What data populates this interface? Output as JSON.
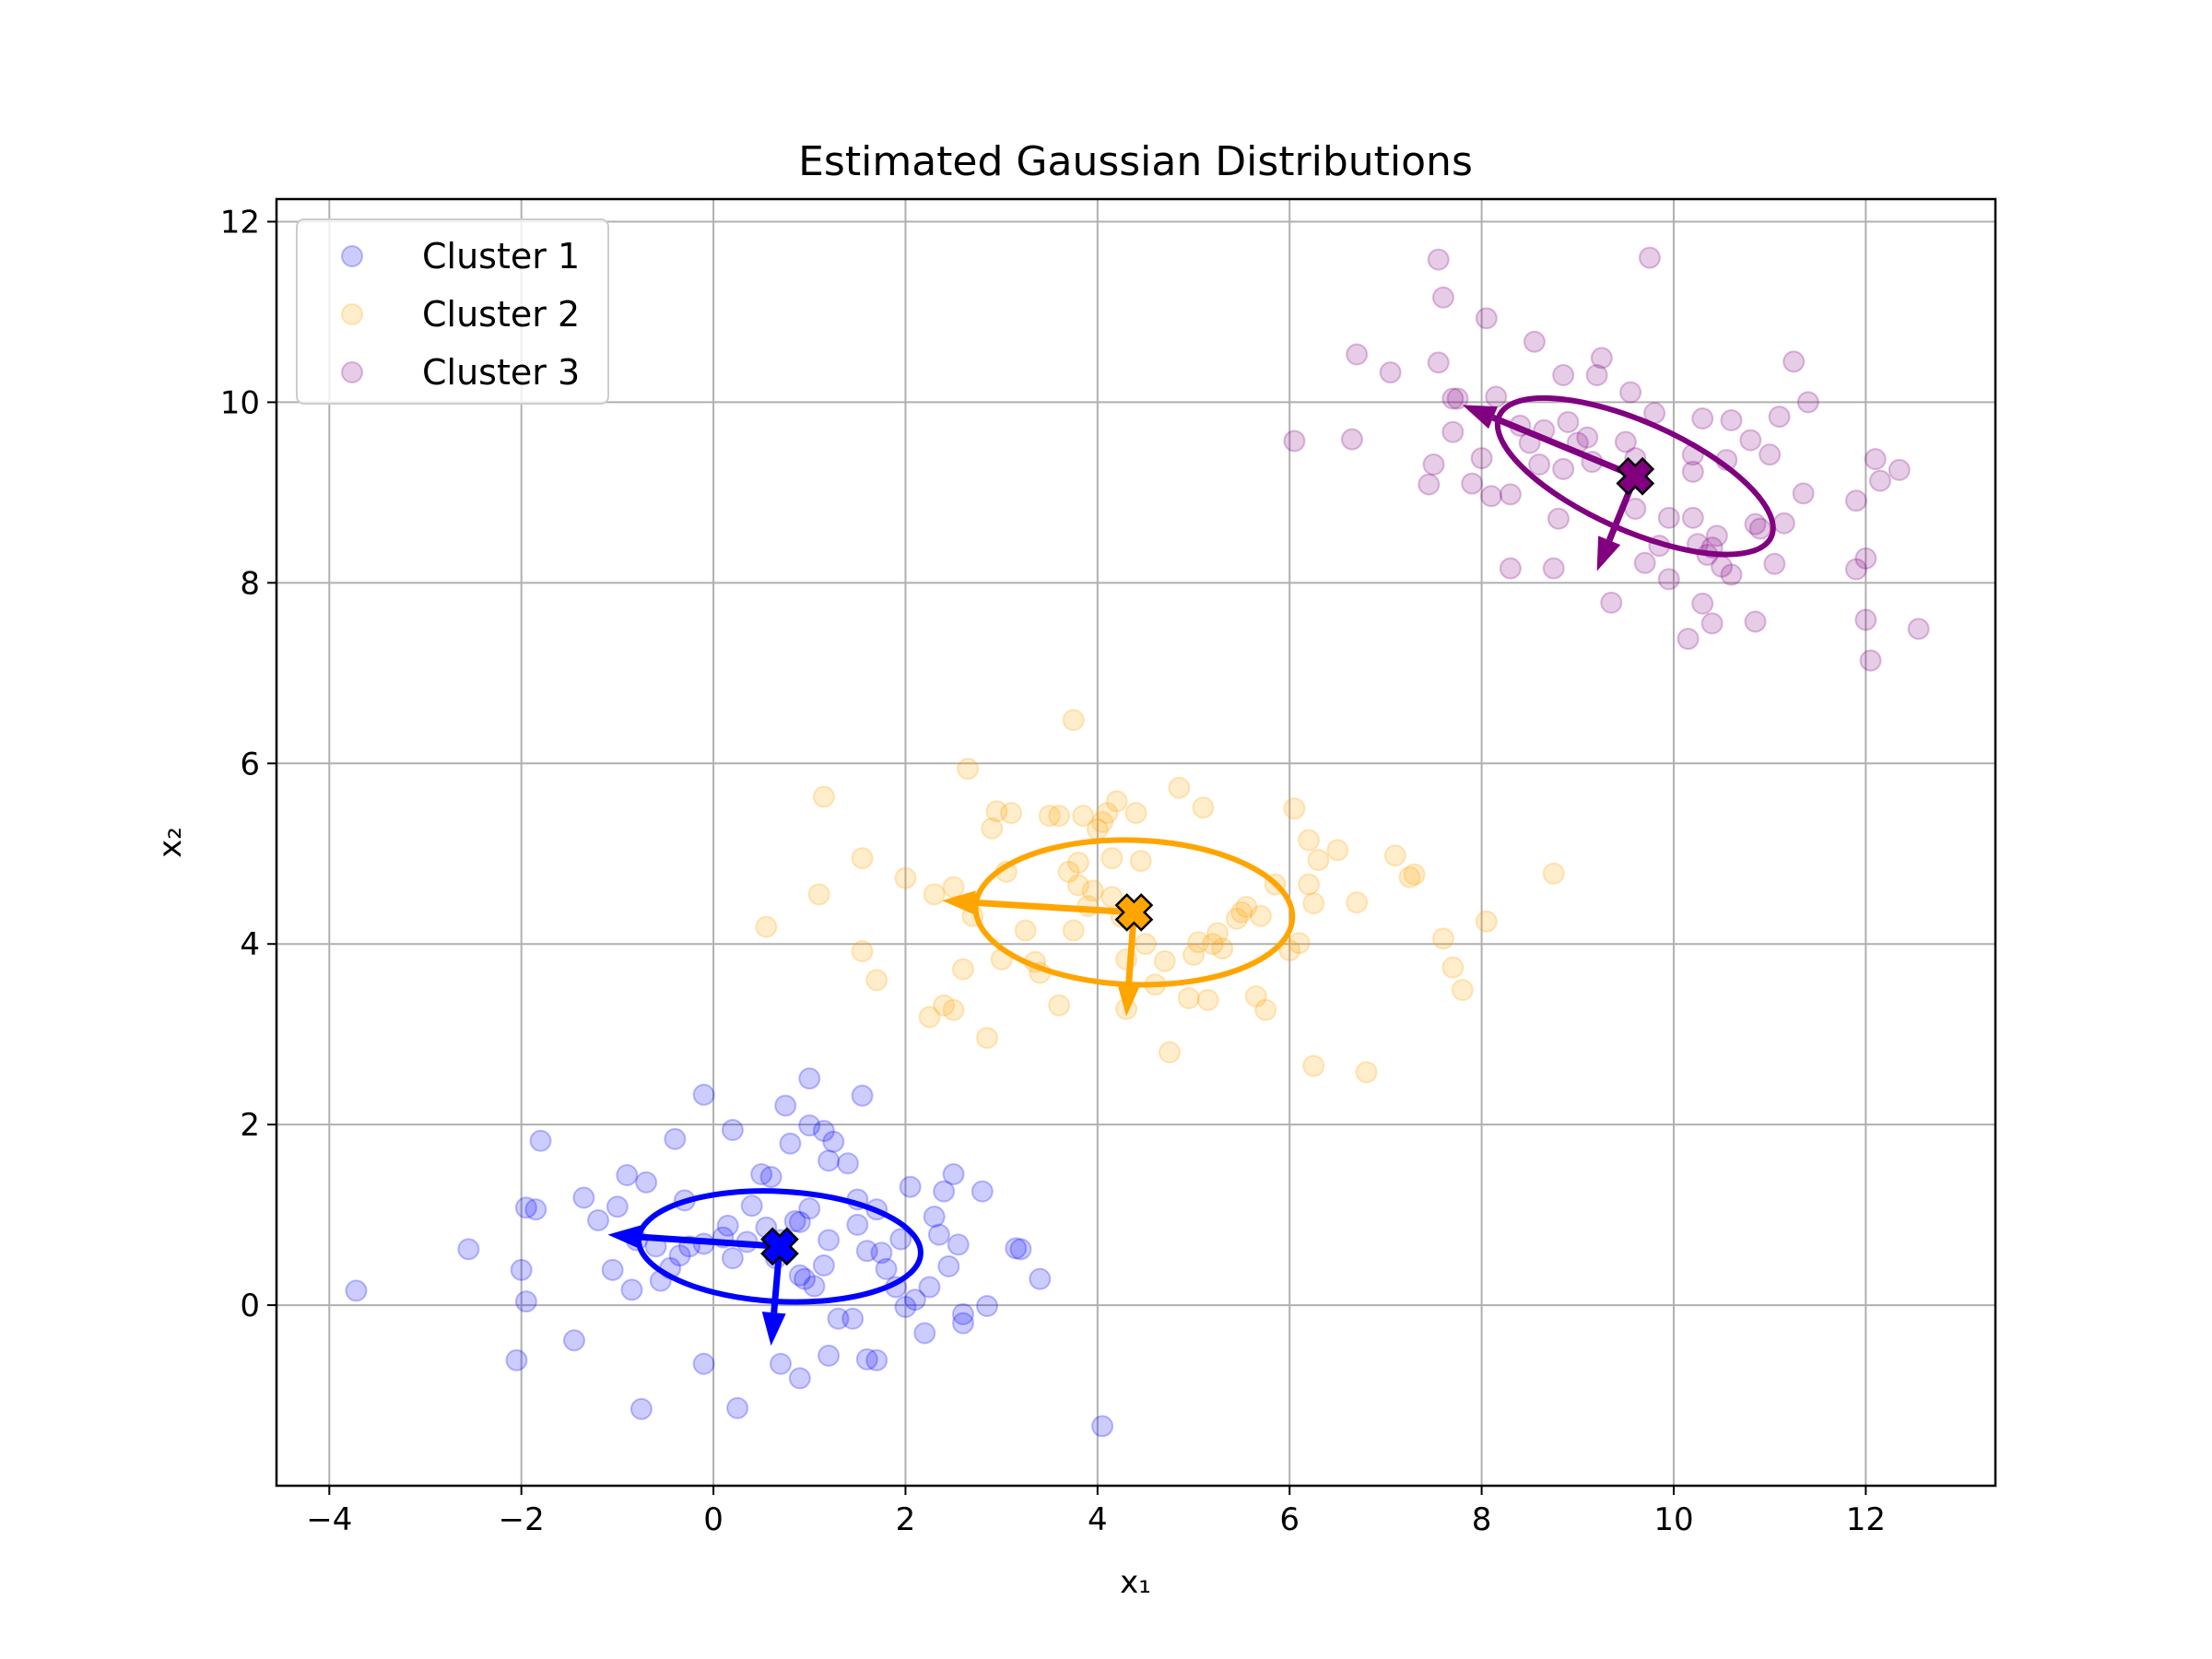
{
  "chart_data": {
    "type": "scatter",
    "title": "Estimated Gaussian Distributions",
    "xlabel": "x₁",
    "ylabel": "x₂",
    "xlim": [
      -4.55,
      13.35
    ],
    "ylim": [
      -2.0,
      12.25
    ],
    "xticks": [
      -4,
      -2,
      0,
      2,
      4,
      6,
      8,
      10,
      12
    ],
    "xtick_labels": [
      "−4",
      "−2",
      "0",
      "2",
      "4",
      "6",
      "8",
      "10",
      "12"
    ],
    "yticks": [
      0,
      2,
      4,
      6,
      8,
      10,
      12
    ],
    "ytick_labels": [
      "0",
      "2",
      "4",
      "6",
      "8",
      "10",
      "12"
    ],
    "grid": true,
    "legend_position": "top-left",
    "series": [
      {
        "name": "Cluster 1",
        "color": "#0000ff",
        "mean": [
          0.69,
          0.65
        ],
        "ellipse": {
          "center": [
            0.69,
            0.65
          ],
          "semi_axis_a": 1.47,
          "semi_axis_b": 0.61,
          "angle_deg": -3
        },
        "arrows": [
          {
            "from": [
              0.69,
              0.65
            ],
            "to": [
              -1.1,
              0.78
            ]
          },
          {
            "from": [
              0.69,
              0.65
            ],
            "to": [
              0.6,
              -0.45
            ]
          }
        ],
        "points": [
          [
            -3.72,
            0.16
          ],
          [
            -2.55,
            0.62
          ],
          [
            -2.05,
            -0.61
          ],
          [
            -2.0,
            0.39
          ],
          [
            -1.95,
            1.08
          ],
          [
            -1.95,
            0.04
          ],
          [
            -1.85,
            1.06
          ],
          [
            -1.8,
            1.82
          ],
          [
            -1.45,
            -0.39
          ],
          [
            -1.35,
            1.19
          ],
          [
            -1.2,
            0.94
          ],
          [
            -1.05,
            0.39
          ],
          [
            -1.0,
            1.09
          ],
          [
            -0.9,
            1.44
          ],
          [
            -0.85,
            0.17
          ],
          [
            -0.8,
            0.72
          ],
          [
            -0.75,
            -1.15
          ],
          [
            -0.7,
            1.36
          ],
          [
            -0.6,
            0.65
          ],
          [
            -0.55,
            0.27
          ],
          [
            -0.45,
            0.41
          ],
          [
            -0.4,
            1.84
          ],
          [
            -0.35,
            0.55
          ],
          [
            -0.3,
            1.16
          ],
          [
            -0.25,
            0.65
          ],
          [
            -0.1,
            0.68
          ],
          [
            -0.1,
            -0.65
          ],
          [
            -0.1,
            2.33
          ],
          [
            0.1,
            0.75
          ],
          [
            0.15,
            0.88
          ],
          [
            0.2,
            0.52
          ],
          [
            0.2,
            1.94
          ],
          [
            0.25,
            -1.14
          ],
          [
            0.35,
            0.7
          ],
          [
            0.4,
            1.1
          ],
          [
            0.5,
            1.45
          ],
          [
            0.55,
            0.86
          ],
          [
            0.6,
            1.42
          ],
          [
            0.65,
            0.52
          ],
          [
            0.7,
            0.72
          ],
          [
            0.7,
            -0.65
          ],
          [
            0.75,
            2.21
          ],
          [
            0.8,
            1.79
          ],
          [
            0.85,
            0.93
          ],
          [
            0.9,
            0.92
          ],
          [
            0.9,
            0.33
          ],
          [
            0.9,
            -0.81
          ],
          [
            0.95,
            0.29
          ],
          [
            1.0,
            1.99
          ],
          [
            1.0,
            1.07
          ],
          [
            1.0,
            2.51
          ],
          [
            1.05,
            0.21
          ],
          [
            1.15,
            1.93
          ],
          [
            1.15,
            0.44
          ],
          [
            1.2,
            1.6
          ],
          [
            1.2,
            0.72
          ],
          [
            1.2,
            -0.56
          ],
          [
            1.25,
            1.81
          ],
          [
            1.3,
            -0.15
          ],
          [
            1.4,
            1.57
          ],
          [
            1.45,
            -0.15
          ],
          [
            1.5,
            0.89
          ],
          [
            1.5,
            1.17
          ],
          [
            1.55,
            2.32
          ],
          [
            1.6,
            0.6
          ],
          [
            1.6,
            -0.6
          ],
          [
            1.7,
            1.06
          ],
          [
            1.7,
            -0.61
          ],
          [
            1.75,
            0.58
          ],
          [
            1.8,
            0.4
          ],
          [
            1.9,
            0.2
          ],
          [
            1.95,
            0.73
          ],
          [
            2.0,
            -0.02
          ],
          [
            2.05,
            1.31
          ],
          [
            2.1,
            0.06
          ],
          [
            2.2,
            -0.31
          ],
          [
            2.25,
            0.2
          ],
          [
            2.3,
            0.98
          ],
          [
            2.35,
            0.78
          ],
          [
            2.4,
            1.26
          ],
          [
            2.45,
            0.43
          ],
          [
            2.5,
            1.45
          ],
          [
            2.55,
            0.67
          ],
          [
            2.6,
            -0.1
          ],
          [
            2.6,
            -0.2
          ],
          [
            2.8,
            1.26
          ],
          [
            2.85,
            -0.01
          ],
          [
            3.15,
            0.63
          ],
          [
            3.2,
            0.62
          ],
          [
            3.4,
            0.29
          ],
          [
            4.05,
            -1.34
          ]
        ]
      },
      {
        "name": "Cluster 2",
        "color": "#ffa500",
        "mean": [
          4.38,
          4.35
        ],
        "ellipse": {
          "center": [
            4.38,
            4.35
          ],
          "semi_axis_a": 1.65,
          "semi_axis_b": 0.8,
          "angle_deg": -2
        },
        "arrows": [
          {
            "from": [
              4.38,
              4.35
            ],
            "to": [
              2.38,
              4.48
            ]
          },
          {
            "from": [
              4.38,
              4.35
            ],
            "to": [
              4.3,
              3.2
            ]
          }
        ],
        "points": [
          [
            0.55,
            4.19
          ],
          [
            1.1,
            4.55
          ],
          [
            1.15,
            5.63
          ],
          [
            1.55,
            4.95
          ],
          [
            1.55,
            3.92
          ],
          [
            1.7,
            3.6
          ],
          [
            2.0,
            4.73
          ],
          [
            2.25,
            3.19
          ],
          [
            2.3,
            4.55
          ],
          [
            2.4,
            3.32
          ],
          [
            2.5,
            4.63
          ],
          [
            2.5,
            3.27
          ],
          [
            2.6,
            3.72
          ],
          [
            2.65,
            5.94
          ],
          [
            2.7,
            4.31
          ],
          [
            2.85,
            2.96
          ],
          [
            2.9,
            5.28
          ],
          [
            2.95,
            5.47
          ],
          [
            3.0,
            3.83
          ],
          [
            3.05,
            4.8
          ],
          [
            3.1,
            5.45
          ],
          [
            3.25,
            4.15
          ],
          [
            3.35,
            3.8
          ],
          [
            3.4,
            3.68
          ],
          [
            3.5,
            5.42
          ],
          [
            3.6,
            5.42
          ],
          [
            3.6,
            3.32
          ],
          [
            3.7,
            4.8
          ],
          [
            3.75,
            4.15
          ],
          [
            3.75,
            6.48
          ],
          [
            3.8,
            4.65
          ],
          [
            3.8,
            4.9
          ],
          [
            3.85,
            5.42
          ],
          [
            3.9,
            4.42
          ],
          [
            3.95,
            4.59
          ],
          [
            4.0,
            5.27
          ],
          [
            4.05,
            5.35
          ],
          [
            4.1,
            5.45
          ],
          [
            4.15,
            4.95
          ],
          [
            4.15,
            4.52
          ],
          [
            4.2,
            5.58
          ],
          [
            4.25,
            4.3
          ],
          [
            4.3,
            3.83
          ],
          [
            4.3,
            3.28
          ],
          [
            4.4,
            5.45
          ],
          [
            4.45,
            4.92
          ],
          [
            4.5,
            4.0
          ],
          [
            4.6,
            3.55
          ],
          [
            4.7,
            3.81
          ],
          [
            4.75,
            2.8
          ],
          [
            4.85,
            5.73
          ],
          [
            4.95,
            3.4
          ],
          [
            5.0,
            3.88
          ],
          [
            5.05,
            4.02
          ],
          [
            5.1,
            5.51
          ],
          [
            5.15,
            3.38
          ],
          [
            5.2,
            4.0
          ],
          [
            5.25,
            4.12
          ],
          [
            5.3,
            3.95
          ],
          [
            5.45,
            4.28
          ],
          [
            5.5,
            4.35
          ],
          [
            5.55,
            4.41
          ],
          [
            5.65,
            3.42
          ],
          [
            5.7,
            4.31
          ],
          [
            5.75,
            3.27
          ],
          [
            5.85,
            4.66
          ],
          [
            6.0,
            3.93
          ],
          [
            6.05,
            5.5
          ],
          [
            6.1,
            4.01
          ],
          [
            6.2,
            5.15
          ],
          [
            6.2,
            4.66
          ],
          [
            6.25,
            4.45
          ],
          [
            6.25,
            2.65
          ],
          [
            6.3,
            4.93
          ],
          [
            6.5,
            5.04
          ],
          [
            6.7,
            4.46
          ],
          [
            6.8,
            2.58
          ],
          [
            7.1,
            4.98
          ],
          [
            7.25,
            4.74
          ],
          [
            7.3,
            4.77
          ],
          [
            7.6,
            4.06
          ],
          [
            7.7,
            3.74
          ],
          [
            7.8,
            3.49
          ],
          [
            8.05,
            4.25
          ],
          [
            8.75,
            4.78
          ]
        ]
      },
      {
        "name": "Cluster 3",
        "color": "#800080",
        "mean": [
          9.6,
          9.18
        ],
        "ellipse": {
          "center": [
            9.6,
            9.18
          ],
          "semi_axis_a": 1.55,
          "semi_axis_b": 0.6,
          "angle_deg": -24
        },
        "arrows": [
          {
            "from": [
              9.6,
              9.18
            ],
            "to": [
              7.8,
              9.97
            ]
          },
          {
            "from": [
              9.6,
              9.18
            ],
            "to": [
              9.2,
              8.13
            ]
          }
        ],
        "points": [
          [
            6.05,
            9.57
          ],
          [
            6.65,
            9.59
          ],
          [
            6.7,
            10.53
          ],
          [
            7.05,
            10.33
          ],
          [
            7.45,
            9.09
          ],
          [
            7.5,
            9.31
          ],
          [
            7.55,
            11.58
          ],
          [
            7.55,
            10.44
          ],
          [
            7.6,
            11.16
          ],
          [
            7.7,
            10.04
          ],
          [
            7.7,
            9.67
          ],
          [
            7.75,
            10.04
          ],
          [
            7.9,
            9.1
          ],
          [
            8.0,
            9.38
          ],
          [
            8.05,
            10.93
          ],
          [
            8.1,
            8.96
          ],
          [
            8.15,
            10.06
          ],
          [
            8.3,
            8.16
          ],
          [
            8.3,
            8.98
          ],
          [
            8.4,
            9.74
          ],
          [
            8.5,
            9.55
          ],
          [
            8.55,
            10.67
          ],
          [
            8.6,
            9.31
          ],
          [
            8.65,
            9.69
          ],
          [
            8.75,
            8.16
          ],
          [
            8.8,
            8.71
          ],
          [
            8.85,
            9.26
          ],
          [
            8.85,
            10.3
          ],
          [
            8.9,
            9.78
          ],
          [
            9.0,
            9.55
          ],
          [
            9.1,
            9.61
          ],
          [
            9.15,
            9.34
          ],
          [
            9.2,
            10.3
          ],
          [
            9.25,
            10.49
          ],
          [
            9.35,
            7.78
          ],
          [
            9.5,
            9.56
          ],
          [
            9.55,
            10.11
          ],
          [
            9.6,
            8.82
          ],
          [
            9.6,
            9.38
          ],
          [
            9.7,
            8.22
          ],
          [
            9.75,
            11.6
          ],
          [
            9.8,
            9.88
          ],
          [
            9.85,
            8.41
          ],
          [
            9.95,
            8.04
          ],
          [
            9.95,
            8.72
          ],
          [
            10.15,
            7.38
          ],
          [
            10.2,
            9.42
          ],
          [
            10.2,
            9.23
          ],
          [
            10.2,
            8.72
          ],
          [
            10.25,
            8.43
          ],
          [
            10.3,
            9.82
          ],
          [
            10.3,
            7.77
          ],
          [
            10.35,
            8.31
          ],
          [
            10.4,
            7.55
          ],
          [
            10.4,
            8.39
          ],
          [
            10.45,
            8.52
          ],
          [
            10.5,
            8.18
          ],
          [
            10.55,
            9.36
          ],
          [
            10.6,
            9.8
          ],
          [
            10.6,
            8.09
          ],
          [
            10.8,
            9.58
          ],
          [
            10.85,
            7.57
          ],
          [
            10.85,
            8.65
          ],
          [
            10.9,
            8.6
          ],
          [
            11.0,
            9.42
          ],
          [
            11.05,
            8.21
          ],
          [
            11.1,
            9.84
          ],
          [
            11.15,
            8.66
          ],
          [
            11.25,
            10.45
          ],
          [
            11.35,
            8.99
          ],
          [
            11.4,
            10.0
          ],
          [
            11.9,
            8.91
          ],
          [
            11.9,
            8.15
          ],
          [
            12.0,
            8.27
          ],
          [
            12.0,
            7.59
          ],
          [
            12.05,
            7.14
          ],
          [
            12.1,
            9.37
          ],
          [
            12.15,
            9.13
          ],
          [
            12.35,
            9.25
          ],
          [
            12.55,
            7.49
          ]
        ]
      }
    ]
  }
}
